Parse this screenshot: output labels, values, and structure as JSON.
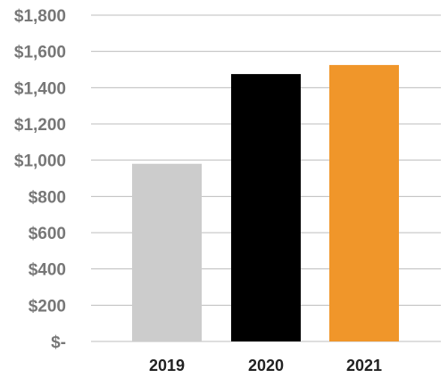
{
  "chart_data": {
    "type": "bar",
    "categories": [
      "2019",
      "2020",
      "2021"
    ],
    "values": [
      980,
      1475,
      1525
    ],
    "colors": [
      "#cccccc",
      "#000000",
      "#f0962a"
    ],
    "ylim": [
      0,
      1800
    ],
    "ytick_values": [
      0,
      200,
      400,
      600,
      800,
      1000,
      1200,
      1400,
      1600,
      1800
    ],
    "ytick_labels": [
      "$-",
      "$200",
      "$400",
      "$600",
      "$800",
      "$1,000",
      "$1,200",
      "$1,400",
      "$1,600",
      "$1,800"
    ],
    "grid": true,
    "legend": "none"
  }
}
